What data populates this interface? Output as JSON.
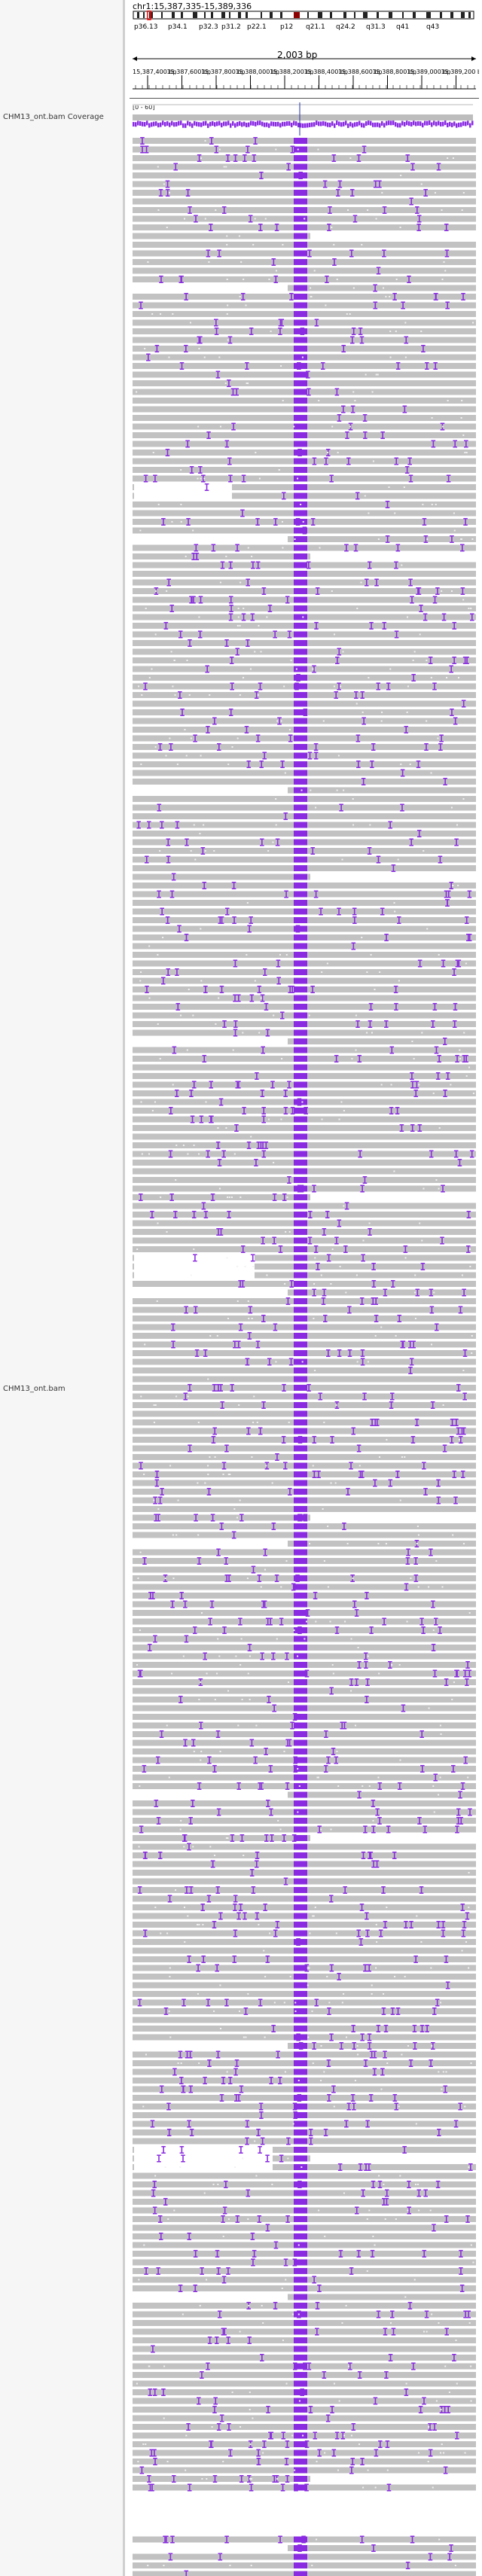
{
  "locus": "chr1:15,387,335-15,389,336",
  "ruler": {
    "span_label": "2,003 bp",
    "tick_labels": [
      "15,387,400 bp",
      "15,387,600 bp",
      "15,387,800 bp",
      "15,388,000 bp",
      "15,388,200 bp",
      "15,388,400 bp",
      "15,388,600 bp",
      "15,388,800 bp",
      "15,389,000 bp",
      "15,389,200 bp"
    ]
  },
  "ideogram": {
    "bands": [
      "p36.13",
      "p34.1",
      "p32.3",
      "p31.2",
      "p22.1",
      "p12",
      "q21.1",
      "q24.2",
      "q31.3",
      "q41",
      "q43"
    ]
  },
  "tracks": {
    "coverage_name": "CHM13_ont.bam Coverage",
    "coverage_range": "[0 - 60]",
    "alignment_name": "CHM13_ont.bam"
  },
  "colors": {
    "read": "#c2c2c2",
    "insertion": "#8a2be2",
    "coverage": "#8a2be2",
    "name_panel": "#f6f6f6"
  }
}
